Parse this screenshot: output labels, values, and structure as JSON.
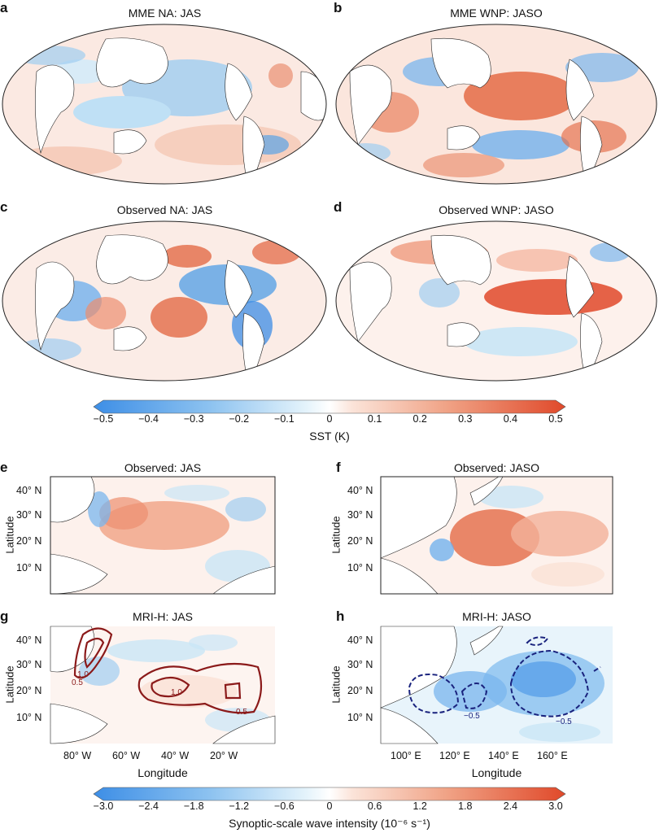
{
  "panels": {
    "a": {
      "label": "a",
      "title": "MME NA: JAS"
    },
    "b": {
      "label": "b",
      "title": "MME WNP: JASO"
    },
    "c": {
      "label": "c",
      "title": "Observed NA: JAS"
    },
    "d": {
      "label": "d",
      "title": "Observed WNP: JASO"
    },
    "e": {
      "label": "e",
      "title": "Observed: JAS"
    },
    "f": {
      "label": "f",
      "title": "Observed: JASO"
    },
    "g": {
      "label": "g",
      "title": "MRI-H: JAS"
    },
    "h": {
      "label": "h",
      "title": "MRI-H: JASO"
    }
  },
  "colorbar_sst": {
    "ticks": [
      "−0.5",
      "−0.4",
      "−0.3",
      "−0.2",
      "−0.1",
      "0",
      "0.1",
      "0.2",
      "0.3",
      "0.4",
      "0.5"
    ],
    "label": "SST (K)"
  },
  "colorbar_wave": {
    "ticks": [
      "−3.0",
      "−2.4",
      "−1.8",
      "−1.2",
      "−0.6",
      "0",
      "0.6",
      "1.2",
      "1.8",
      "2.4",
      "3.0"
    ],
    "label": "Synoptic-scale wave intensity (10⁻⁶ s⁻¹)"
  },
  "regional_axes": {
    "y_ticks": [
      "40° N",
      "30° N",
      "20° N",
      "10° N"
    ],
    "y_label": "Latitude",
    "x_label": "Longitude",
    "x_ticks_left": [
      "80° W",
      "60° W",
      "40° W",
      "20° W"
    ],
    "x_ticks_right": [
      "100° E",
      "120° E",
      "140° E",
      "160° E"
    ]
  },
  "contour_labels": {
    "g": [
      "1.0",
      "0.5",
      "1.0",
      "0.5"
    ],
    "h": [
      "−0.5",
      "−0.5"
    ]
  },
  "colors": {
    "cold_strong": "#3d8ee6",
    "cold_weak": "#c9e6f6",
    "neutral": "#ffffff",
    "warm_weak": "#f7d5c4",
    "warm_strong": "#e0492a",
    "contour_pos": "#8b1a1a",
    "contour_neg": "#1a237e"
  }
}
